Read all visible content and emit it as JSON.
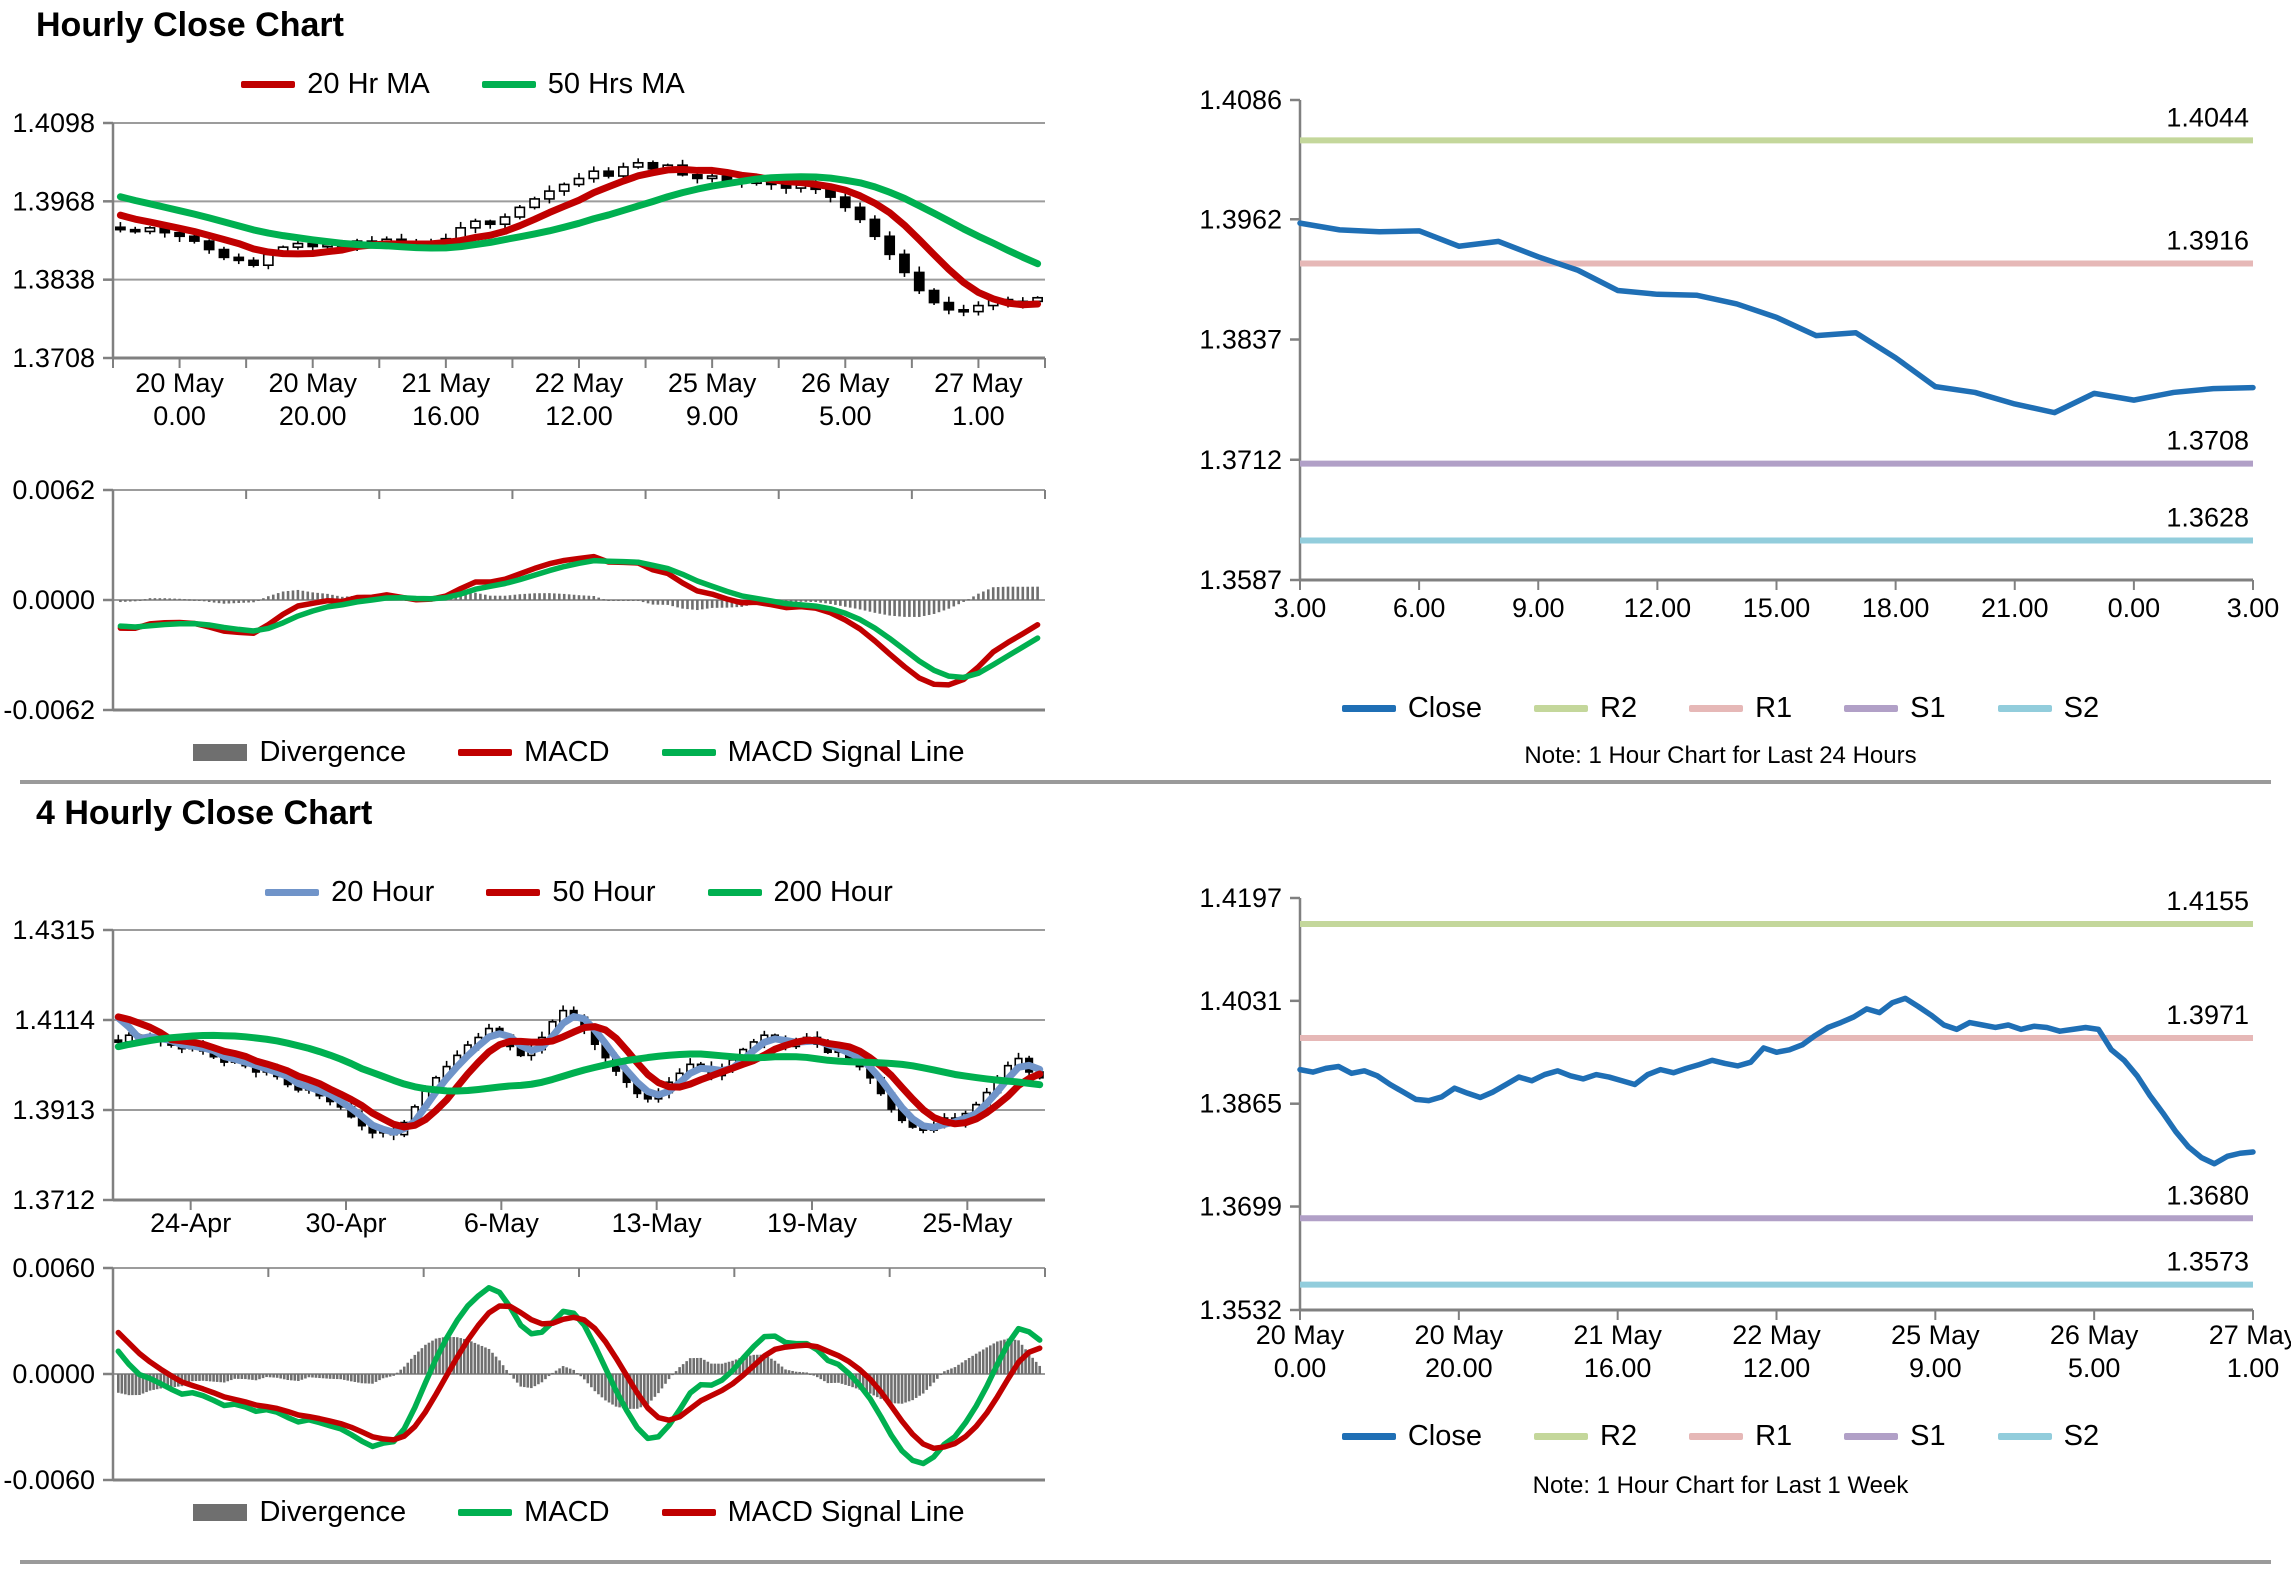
{
  "sections": {
    "hourly": {
      "title": "Hourly Close Chart"
    },
    "four_hourly": {
      "title": "4 Hourly Close Chart"
    }
  },
  "colors": {
    "red": "#c00000",
    "green": "#00b050",
    "blue_ma": "#7094c9",
    "close_blue": "#1f6fb5",
    "r2": "#c4d79b",
    "r1": "#e6b8b7",
    "s1": "#b1a0c7",
    "s2": "#92cddc",
    "divergence": "#6f6f6f",
    "grid": "#9c9c9c",
    "axis": "#808080",
    "candle": "#000000"
  },
  "chart_data": [
    {
      "id": "hourly_price",
      "type": "candlestick",
      "ylim": [
        1.3708,
        1.4098
      ],
      "yticks": [
        "1.4098",
        "1.3968",
        "1.3838",
        "1.3708"
      ],
      "xticks": [
        [
          "20 May",
          "0.00"
        ],
        [
          "20 May",
          "20.00"
        ],
        [
          "21 May",
          "16.00"
        ],
        [
          "22 May",
          "12.00"
        ],
        [
          "25 May",
          "9.00"
        ],
        [
          "26 May",
          "5.00"
        ],
        [
          "27 May",
          "1.00"
        ]
      ],
      "xtick_mode": "boundaries",
      "wick": 0.001,
      "closes": [
        1.3921,
        1.3918,
        1.3924,
        1.3916,
        1.391,
        1.3902,
        1.3888,
        1.3875,
        1.387,
        1.3862,
        1.388,
        1.3892,
        1.3898,
        1.3893,
        1.3896,
        1.389,
        1.3902,
        1.3898,
        1.3905,
        1.3896,
        1.3893,
        1.3898,
        1.3906,
        1.3924,
        1.3935,
        1.393,
        1.3942,
        1.3958,
        1.3972,
        1.3985,
        1.3996,
        1.4006,
        1.4018,
        1.401,
        1.4025,
        1.4032,
        1.4022,
        1.4028,
        1.4012,
        1.4006,
        1.401,
        1.4002,
        1.3998,
        1.4004,
        1.3996,
        1.399,
        1.3995,
        1.3988,
        1.3975,
        1.3958,
        1.3938,
        1.391,
        1.388,
        1.385,
        1.382,
        1.38,
        1.3788,
        1.3785,
        1.3795,
        1.3805,
        1.38,
        1.3802,
        1.3808
      ],
      "ma_warmup_values": [
        1.403,
        1.4024,
        1.4018,
        1.4012,
        1.4006,
        1.4,
        1.3994,
        1.3988,
        1.3982,
        1.3976,
        1.397,
        1.3964,
        1.3958,
        1.3952,
        1.3946,
        1.394,
        1.3934
      ],
      "series": [
        {
          "name": "20 Hr MA",
          "color": "red",
          "window": 7
        },
        {
          "name": "50 Hrs MA",
          "color": "green",
          "window": 17
        }
      ]
    },
    {
      "id": "hourly_macd",
      "type": "macd",
      "source": "hourly_price",
      "ylim": [
        -0.0062,
        0.0062
      ],
      "yticks": [
        "0.0062",
        "0.0000",
        "-0.0062"
      ],
      "fast": 4,
      "slow": 9,
      "signal": 4,
      "macd_color": "red",
      "signal_color": "green",
      "legend": [
        {
          "name": "Divergence",
          "kind": "bar",
          "color": "divergence"
        },
        {
          "name": "MACD",
          "kind": "line",
          "color": "red"
        },
        {
          "name": "MACD Signal Line",
          "kind": "line",
          "color": "green"
        }
      ]
    },
    {
      "id": "fourh_price",
      "type": "candlestick",
      "ylim": [
        1.3712,
        1.4315
      ],
      "yticks": [
        "1.4315",
        "1.4114",
        "1.3913",
        "1.3712"
      ],
      "xticks": [
        "24-Apr",
        "30-Apr",
        "6-May",
        "13-May",
        "19-May",
        "25-May"
      ],
      "xtick_mode": "centers",
      "wick": 0.0014,
      "closes": [
        1.4065,
        1.408,
        1.4072,
        1.4078,
        1.4068,
        1.4058,
        1.405,
        1.406,
        1.4045,
        1.4032,
        1.402,
        1.4028,
        1.4012,
        1.3998,
        1.4005,
        1.3988,
        1.397,
        1.3958,
        1.3965,
        1.3945,
        1.3932,
        1.392,
        1.3898,
        1.3878,
        1.3862,
        1.387,
        1.3858,
        1.3885,
        1.392,
        1.3955,
        1.3985,
        1.401,
        1.4035,
        1.4058,
        1.4075,
        1.4095,
        1.408,
        1.4055,
        1.4035,
        1.4048,
        1.4075,
        1.411,
        1.4135,
        1.412,
        1.4095,
        1.406,
        1.403,
        1.4,
        1.3975,
        1.395,
        1.3938,
        1.3952,
        1.3975,
        1.3995,
        1.4015,
        1.4008,
        1.399,
        1.4005,
        1.4025,
        1.4048,
        1.4065,
        1.408,
        1.407,
        1.4055,
        1.4068,
        1.4075,
        1.406,
        1.4042,
        1.405,
        1.403,
        1.401,
        1.3985,
        1.395,
        1.3915,
        1.389,
        1.3875,
        1.3868,
        1.388,
        1.3895,
        1.3885,
        1.3905,
        1.3925,
        1.3952,
        1.3985,
        1.4012,
        1.4028,
        1.3998,
        1.3985
      ],
      "ma_warmup_values": [
        1.395,
        1.3959,
        1.3967,
        1.3976,
        1.3985,
        1.3993,
        1.4002,
        1.4011,
        1.4019,
        1.4028,
        1.4037,
        1.4045,
        1.4054,
        1.4063,
        1.4071,
        1.408,
        1.4089,
        1.4097,
        1.4106,
        1.4115,
        1.4123,
        1.4132,
        1.4141,
        1.415
      ],
      "series": [
        {
          "name": "20 Hour",
          "color": "blue_ma",
          "window": 3
        },
        {
          "name": "50 Hour",
          "color": "red",
          "window": 6
        },
        {
          "name": "200 Hour",
          "color": "green",
          "window": 24
        }
      ]
    },
    {
      "id": "fourh_macd",
      "type": "macd",
      "source": "fourh_price",
      "ylim": [
        -0.006,
        0.006
      ],
      "yticks": [
        "0.0060",
        "0.0000",
        "-0.0060"
      ],
      "fast": 5,
      "slow": 12,
      "signal": 5,
      "macd_color": "green",
      "signal_color": "red",
      "legend": [
        {
          "name": "Divergence",
          "kind": "bar",
          "color": "divergence"
        },
        {
          "name": "MACD",
          "kind": "line",
          "color": "green"
        },
        {
          "name": "MACD Signal Line",
          "kind": "line",
          "color": "red"
        }
      ]
    },
    {
      "id": "day_line",
      "type": "line",
      "ylim": [
        1.3587,
        1.4086
      ],
      "yticks": [
        "1.4086",
        "1.3962",
        "1.3837",
        "1.3712",
        "1.3587"
      ],
      "xticks": [
        "3.00",
        "6.00",
        "9.00",
        "12.00",
        "15.00",
        "18.00",
        "21.00",
        "0.00",
        "3.00"
      ],
      "closes": [
        1.3958,
        1.3951,
        1.3949,
        1.395,
        1.3934,
        1.3939,
        1.3923,
        1.3909,
        1.3888,
        1.3884,
        1.3883,
        1.3874,
        1.386,
        1.3841,
        1.3844,
        1.3818,
        1.3788,
        1.3782,
        1.377,
        1.3761,
        1.3781,
        1.3774,
        1.3782,
        1.3786,
        1.3787
      ],
      "levels": [
        {
          "name": "R2",
          "value": 1.4044,
          "label": "1.4044",
          "color": "r2"
        },
        {
          "name": "R1",
          "value": 1.3916,
          "label": "1.3916",
          "color": "r1"
        },
        {
          "name": "S1",
          "value": 1.3708,
          "label": "1.3708",
          "color": "s1"
        },
        {
          "name": "S2",
          "value": 1.3628,
          "label": "1.3628",
          "color": "s2"
        }
      ],
      "legend": [
        {
          "name": "Close",
          "kind": "line",
          "color": "close_blue"
        },
        {
          "name": "R2",
          "kind": "line",
          "color": "r2"
        },
        {
          "name": "R1",
          "kind": "line",
          "color": "r1"
        },
        {
          "name": "S1",
          "kind": "line",
          "color": "s1"
        },
        {
          "name": "S2",
          "kind": "line",
          "color": "s2"
        }
      ],
      "note": "Note: 1 Hour Chart for Last 24 Hours"
    },
    {
      "id": "week_line",
      "type": "line",
      "ylim": [
        1.3532,
        1.4197
      ],
      "yticks": [
        "1.4197",
        "1.4031",
        "1.3865",
        "1.3699",
        "1.3532"
      ],
      "xticks": [
        [
          "20 May",
          "0.00"
        ],
        [
          "20 May",
          "20.00"
        ],
        [
          "21 May",
          "16.00"
        ],
        [
          "22 May",
          "12.00"
        ],
        [
          "25 May",
          "9.00"
        ],
        [
          "26 May",
          "5.00"
        ],
        [
          "27 May",
          "1.00"
        ]
      ],
      "closes": [
        1.392,
        1.3916,
        1.3922,
        1.3925,
        1.3914,
        1.3918,
        1.391,
        1.3896,
        1.3884,
        1.3872,
        1.387,
        1.3876,
        1.389,
        1.3882,
        1.3875,
        1.3884,
        1.3896,
        1.3908,
        1.3902,
        1.3912,
        1.3918,
        1.391,
        1.3905,
        1.3912,
        1.3908,
        1.3902,
        1.3896,
        1.3912,
        1.392,
        1.3915,
        1.3922,
        1.3928,
        1.3935,
        1.393,
        1.3926,
        1.3932,
        1.3955,
        1.3948,
        1.3952,
        1.396,
        1.3975,
        1.3988,
        1.3996,
        1.4005,
        1.4018,
        1.4012,
        1.4028,
        1.4035,
        1.4022,
        1.4008,
        1.3992,
        1.3985,
        1.3996,
        1.3992,
        1.3988,
        1.3992,
        1.3985,
        1.399,
        1.3988,
        1.3982,
        1.3985,
        1.3988,
        1.3985,
        1.3952,
        1.3935,
        1.391,
        1.3878,
        1.385,
        1.382,
        1.3795,
        1.3778,
        1.3768,
        1.378,
        1.3785,
        1.3787
      ],
      "levels": [
        {
          "name": "R2",
          "value": 1.4155,
          "label": "1.4155",
          "color": "r2"
        },
        {
          "name": "R1",
          "value": 1.3971,
          "label": "1.3971",
          "color": "r1"
        },
        {
          "name": "S1",
          "value": 1.368,
          "label": "1.3680",
          "color": "s1"
        },
        {
          "name": "S2",
          "value": 1.3573,
          "label": "1.3573",
          "color": "s2"
        }
      ],
      "legend": [
        {
          "name": "Close",
          "kind": "line",
          "color": "close_blue"
        },
        {
          "name": "R2",
          "kind": "line",
          "color": "r2"
        },
        {
          "name": "R1",
          "kind": "line",
          "color": "r1"
        },
        {
          "name": "S1",
          "kind": "line",
          "color": "s1"
        },
        {
          "name": "S2",
          "kind": "line",
          "color": "s2"
        }
      ],
      "note": "Note: 1 Hour Chart for  Last 1 Week"
    }
  ]
}
